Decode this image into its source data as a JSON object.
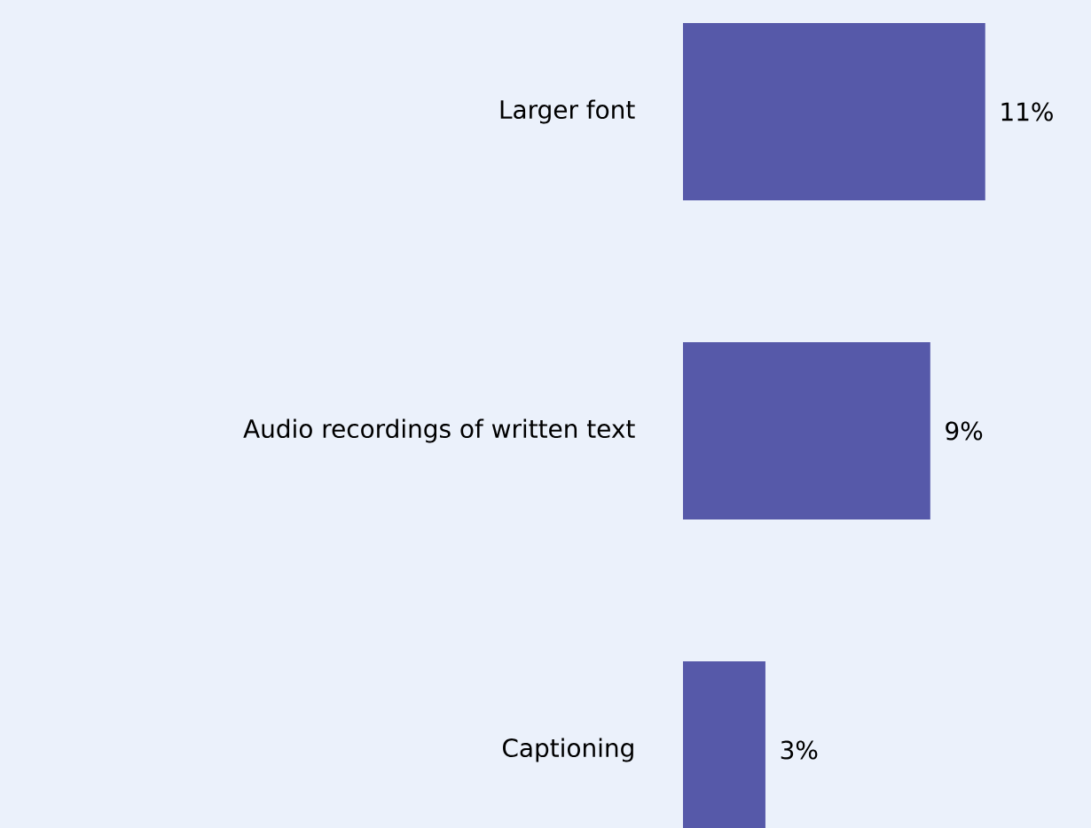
{
  "chart_data": {
    "type": "bar",
    "orientation": "horizontal",
    "categories": [
      "Larger font",
      "Audio recordings of written text",
      "Captioning"
    ],
    "values": [
      11,
      9,
      3
    ],
    "value_labels": [
      "11%",
      "9%",
      "3%"
    ],
    "color": "#5659a9",
    "tick_labels": "y",
    "grid": false
  }
}
